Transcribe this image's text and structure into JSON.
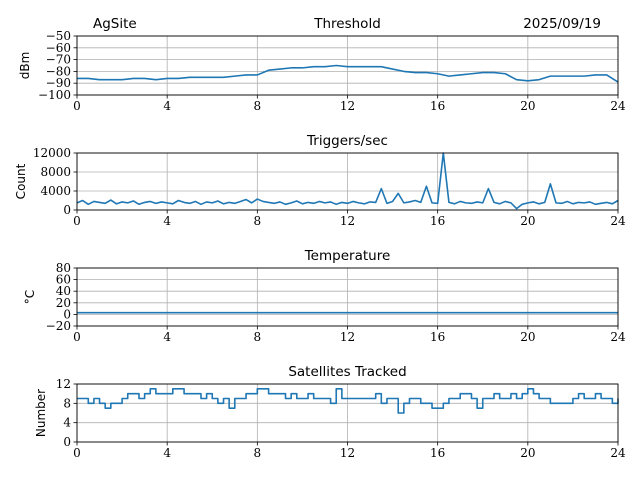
{
  "header": {
    "site": "AgSite",
    "date": "2025/09/19"
  },
  "chart_data": [
    {
      "type": "line",
      "title": "Threshold",
      "xlabel": "",
      "ylabel": "dBm",
      "xlim": [
        0,
        24
      ],
      "ylim": [
        -100,
        -50
      ],
      "xticks": [
        "0",
        "4",
        "8",
        "12",
        "16",
        "20",
        "24"
      ],
      "yticks": [
        "−100",
        "−90",
        "−80",
        "−70",
        "−60",
        "−50"
      ],
      "ytick_values": [
        -100,
        -90,
        -80,
        -70,
        -60,
        -50
      ],
      "grid": true,
      "step": 0.5,
      "values": [
        -86,
        -86,
        -87,
        -87,
        -87,
        -86,
        -86,
        -87,
        -86,
        -86,
        -85,
        -85,
        -85,
        -85,
        -84,
        -83,
        -83,
        -79,
        -78,
        -77,
        -77,
        -76,
        -76,
        -75,
        -76,
        -76,
        -76,
        -76,
        -78,
        -80,
        -81,
        -81,
        -82,
        -84,
        -83,
        -82,
        -81,
        -81,
        -82,
        -87,
        -88,
        -87,
        -84,
        -84,
        -84,
        -84,
        -83,
        -83,
        -89
      ]
    },
    {
      "type": "line",
      "title": "Triggers/sec",
      "xlabel": "",
      "ylabel": "Count",
      "xlim": [
        0,
        24
      ],
      "ylim": [
        0,
        12000
      ],
      "xticks": [
        "0",
        "4",
        "8",
        "12",
        "16",
        "20",
        "24"
      ],
      "yticks": [
        "0",
        "4000",
        "8000",
        "12000"
      ],
      "ytick_values": [
        0,
        4000,
        8000,
        12000
      ],
      "grid": true,
      "step": 0.25,
      "values": [
        1500,
        2000,
        1200,
        1800,
        1600,
        1400,
        2100,
        1300,
        1700,
        1500,
        1900,
        1200,
        1600,
        1800,
        1400,
        1700,
        1500,
        1300,
        2000,
        1600,
        1400,
        1800,
        1200,
        1700,
        1500,
        1900,
        1300,
        1600,
        1400,
        1800,
        2200,
        1500,
        2300,
        1800,
        1600,
        1400,
        1700,
        1200,
        1500,
        1900,
        1300,
        1600,
        1400,
        1800,
        1500,
        1700,
        1200,
        1600,
        1400,
        1800,
        1500,
        1300,
        1700,
        1600,
        4500,
        1400,
        1800,
        3500,
        1500,
        1700,
        2000,
        1600,
        5000,
        1500,
        1400,
        12000,
        1600,
        1300,
        1800,
        1500,
        1400,
        1700,
        1500,
        4500,
        1600,
        1300,
        1800,
        1500,
        300,
        1200,
        1500,
        1700,
        1300,
        1600,
        5500,
        1500,
        1400,
        1800,
        1300,
        1600,
        1500,
        1700,
        1200,
        1400,
        1600,
        1300,
        2000
      ]
    },
    {
      "type": "line",
      "title": "Temperature",
      "xlabel": "",
      "ylabel": "°C",
      "xlim": [
        0,
        24
      ],
      "ylim": [
        -20,
        80
      ],
      "xticks": [
        "0",
        "4",
        "8",
        "12",
        "16",
        "20",
        "24"
      ],
      "yticks": [
        "−20",
        "0",
        "20",
        "40",
        "60",
        "80"
      ],
      "ytick_values": [
        -20,
        0,
        20,
        40,
        60,
        80
      ],
      "grid": true,
      "step": 24,
      "values": [
        3,
        3
      ]
    },
    {
      "type": "line",
      "title": "Satellites Tracked",
      "xlabel": "",
      "ylabel": "Number",
      "xlim": [
        0,
        24
      ],
      "ylim": [
        0,
        12
      ],
      "xticks": [
        "0",
        "4",
        "8",
        "12",
        "16",
        "20",
        "24"
      ],
      "yticks": [
        "0",
        "4",
        "8",
        "12"
      ],
      "ytick_values": [
        0,
        4,
        8,
        12
      ],
      "grid": true,
      "step": 0.25,
      "drawstyle": "steps",
      "values": [
        9,
        9,
        8,
        9,
        8,
        7,
        8,
        8,
        9,
        10,
        10,
        9,
        10,
        11,
        10,
        10,
        10,
        11,
        11,
        10,
        10,
        10,
        9,
        10,
        9,
        8,
        9,
        7,
        9,
        9,
        10,
        10,
        11,
        11,
        10,
        10,
        10,
        9,
        10,
        9,
        9,
        10,
        9,
        9,
        9,
        8,
        11,
        9,
        9,
        9,
        9,
        9,
        9,
        10,
        8,
        9,
        9,
        6,
        8,
        9,
        9,
        8,
        8,
        7,
        7,
        8,
        9,
        9,
        10,
        10,
        9,
        7,
        9,
        9,
        10,
        9,
        9,
        10,
        9,
        10,
        11,
        10,
        9,
        9,
        8,
        8,
        8,
        8,
        9,
        10,
        9,
        9,
        10,
        9,
        9,
        8,
        9
      ]
    }
  ],
  "colors": {
    "line": "#1f77b4",
    "grid": "#b0b0b0"
  }
}
